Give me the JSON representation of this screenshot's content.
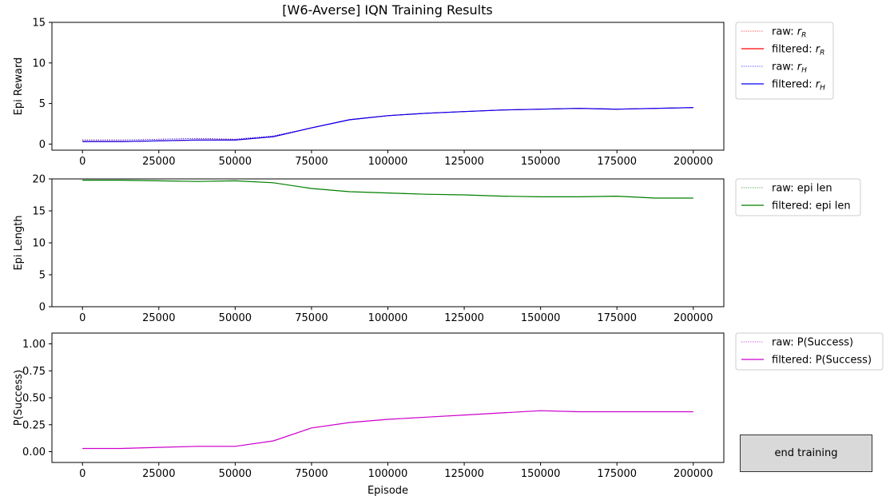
{
  "window": {
    "title": "[W6-Averse] IQN Training Results"
  },
  "button": {
    "end_training": "end training"
  },
  "chart_data": [
    {
      "type": "line",
      "ylabel": "Epi Reward",
      "xlabel": "",
      "xlim": [
        -10000,
        210000
      ],
      "ylim": [
        -0.75,
        15.0
      ],
      "xticks": [
        0,
        25000,
        50000,
        75000,
        100000,
        125000,
        150000,
        175000,
        200000
      ],
      "yticks": [
        0,
        5,
        10,
        15
      ],
      "legend_position": "outside-right",
      "series": [
        {
          "name": "raw: r_R",
          "legend_main": "raw: r",
          "legend_sub": "R",
          "style": "dotted",
          "color": "#ff0000",
          "x": [
            0,
            12500,
            25000,
            37500,
            50000,
            62500,
            75000,
            87500,
            100000,
            112500,
            125000,
            137500,
            150000,
            162500,
            175000,
            187500,
            200000
          ],
          "values": [
            0.5,
            0.5,
            0.6,
            0.7,
            0.6,
            1.0,
            2.0,
            3.0,
            3.5,
            3.8,
            4.0,
            4.2,
            4.3,
            4.4,
            4.3,
            4.4,
            4.5
          ]
        },
        {
          "name": "filtered: r_R",
          "legend_main": "filtered: r",
          "legend_sub": "R",
          "style": "solid",
          "color": "#ff0000",
          "x": [
            0,
            12500,
            25000,
            37500,
            50000,
            62500,
            75000,
            87500,
            100000,
            112500,
            125000,
            137500,
            150000,
            162500,
            175000,
            187500,
            200000
          ],
          "values": [
            0.3,
            0.3,
            0.4,
            0.5,
            0.5,
            0.9,
            2.0,
            3.0,
            3.5,
            3.8,
            4.0,
            4.2,
            4.3,
            4.4,
            4.3,
            4.4,
            4.5
          ]
        },
        {
          "name": "raw: r_H",
          "legend_main": "raw: r",
          "legend_sub": "H",
          "style": "dotted",
          "color": "#0000ff",
          "x": [
            0,
            12500,
            25000,
            37500,
            50000,
            62500,
            75000,
            87500,
            100000,
            112500,
            125000,
            137500,
            150000,
            162500,
            175000,
            187500,
            200000
          ],
          "values": [
            0.5,
            0.5,
            0.6,
            0.7,
            0.6,
            1.0,
            2.0,
            3.0,
            3.5,
            3.8,
            4.0,
            4.2,
            4.3,
            4.4,
            4.3,
            4.4,
            4.5
          ]
        },
        {
          "name": "filtered: r_H",
          "legend_main": "filtered: r",
          "legend_sub": "H",
          "style": "solid",
          "color": "#0000ff",
          "x": [
            0,
            12500,
            25000,
            37500,
            50000,
            62500,
            75000,
            87500,
            100000,
            112500,
            125000,
            137500,
            150000,
            162500,
            175000,
            187500,
            200000
          ],
          "values": [
            0.3,
            0.3,
            0.4,
            0.5,
            0.5,
            0.9,
            2.0,
            3.0,
            3.5,
            3.8,
            4.0,
            4.2,
            4.3,
            4.4,
            4.3,
            4.4,
            4.5
          ]
        }
      ]
    },
    {
      "type": "line",
      "ylabel": "Epi Length",
      "xlabel": "",
      "xlim": [
        -10000,
        210000
      ],
      "ylim": [
        0,
        20
      ],
      "xticks": [
        0,
        25000,
        50000,
        75000,
        100000,
        125000,
        150000,
        175000,
        200000
      ],
      "yticks": [
        0,
        5,
        10,
        15,
        20
      ],
      "legend_position": "outside-right",
      "series": [
        {
          "name": "raw: epi len",
          "legend_main": "raw: epi len",
          "legend_sub": "",
          "style": "dotted",
          "color": "#008000",
          "x": [
            0,
            12500,
            25000,
            37500,
            50000,
            62500,
            75000,
            87500,
            100000,
            112500,
            125000,
            137500,
            150000,
            162500,
            175000,
            187500,
            200000
          ],
          "values": [
            19.8,
            19.8,
            19.7,
            19.6,
            19.7,
            19.4,
            18.5,
            18.0,
            17.8,
            17.6,
            17.5,
            17.3,
            17.2,
            17.2,
            17.3,
            17.0,
            17.0
          ]
        },
        {
          "name": "filtered: epi len",
          "legend_main": "filtered: epi len",
          "legend_sub": "",
          "style": "solid",
          "color": "#008000",
          "x": [
            0,
            12500,
            25000,
            37500,
            50000,
            62500,
            75000,
            87500,
            100000,
            112500,
            125000,
            137500,
            150000,
            162500,
            175000,
            187500,
            200000
          ],
          "values": [
            19.8,
            19.8,
            19.7,
            19.6,
            19.7,
            19.4,
            18.5,
            18.0,
            17.8,
            17.6,
            17.5,
            17.3,
            17.2,
            17.2,
            17.3,
            17.0,
            17.0
          ]
        }
      ]
    },
    {
      "type": "line",
      "ylabel": "P(Success)",
      "xlabel": "Episode",
      "xlim": [
        -10000,
        210000
      ],
      "ylim": [
        -0.1,
        1.1
      ],
      "xticks": [
        0,
        25000,
        50000,
        75000,
        100000,
        125000,
        150000,
        175000,
        200000
      ],
      "yticks": [
        0.0,
        0.25,
        0.5,
        0.75,
        1.0
      ],
      "ytick_labels": [
        "0.00",
        "0.25",
        "0.50",
        "0.75",
        "1.00"
      ],
      "legend_position": "outside-right",
      "series": [
        {
          "name": "raw: P(Success)",
          "legend_main": "raw: P(Success)",
          "legend_sub": "",
          "style": "dotted",
          "color": "#cc00cc",
          "x": [
            0,
            12500,
            25000,
            37500,
            50000,
            62500,
            75000,
            87500,
            100000,
            112500,
            125000,
            137500,
            150000,
            162500,
            175000,
            187500,
            200000
          ],
          "values": [
            0.03,
            0.03,
            0.04,
            0.05,
            0.05,
            0.1,
            0.22,
            0.27,
            0.3,
            0.32,
            0.34,
            0.36,
            0.38,
            0.37,
            0.37,
            0.37,
            0.37
          ]
        },
        {
          "name": "filtered: P(Success)",
          "legend_main": "filtered: P(Success)",
          "legend_sub": "",
          "style": "solid",
          "color": "#cc00cc",
          "x": [
            0,
            12500,
            25000,
            37500,
            50000,
            62500,
            75000,
            87500,
            100000,
            112500,
            125000,
            137500,
            150000,
            162500,
            175000,
            187500,
            200000
          ],
          "values": [
            0.03,
            0.03,
            0.04,
            0.05,
            0.05,
            0.1,
            0.22,
            0.27,
            0.3,
            0.32,
            0.34,
            0.36,
            0.38,
            0.37,
            0.37,
            0.37,
            0.37
          ]
        }
      ]
    }
  ]
}
